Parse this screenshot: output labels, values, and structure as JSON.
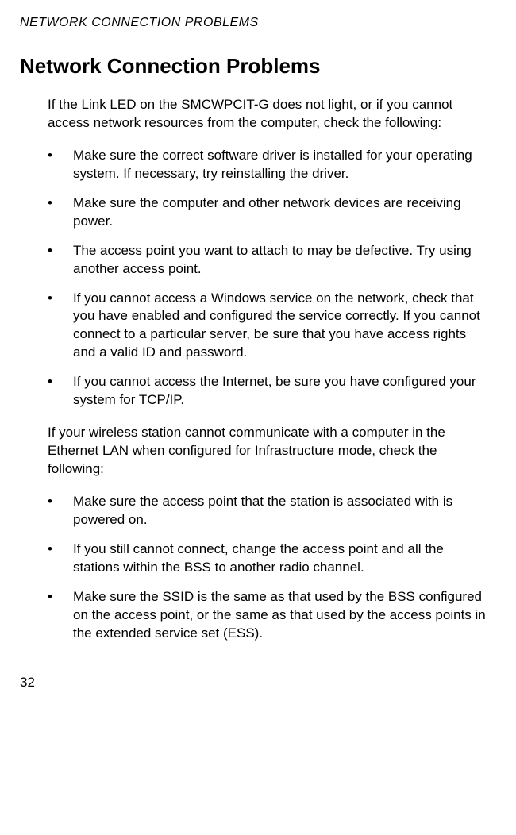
{
  "running_header": "NETWORK CONNECTION PROBLEMS",
  "heading": "Network Connection Problems",
  "intro1": "If the Link LED on the SMCWPCIT-G does not light, or if you cannot access network resources from the computer, check the following:",
  "list1": [
    "Make sure the correct software driver is installed for your operating system. If necessary, try reinstalling the driver.",
    "Make sure the computer and other network devices are receiving power.",
    "The access point you want to attach to may be defective. Try using another access point.",
    "If you cannot access a Windows service on the network, check that you have enabled and configured the service correctly. If you cannot connect to a particular server, be sure that you have access rights and a valid ID and password.",
    "If you cannot access the Internet, be sure you have configured your system for TCP/IP."
  ],
  "intro2": "If your wireless station cannot communicate with a computer in the Ethernet LAN when configured for Infrastructure mode, check the following:",
  "list2": [
    "Make sure the access point that the station is associated with is powered on.",
    "If you still cannot connect, change the access point and all the stations within the BSS to another radio channel.",
    "Make sure the SSID is the same as that used by the BSS configured on the access point, or the same as that used by the access points in the extended service set (ESS)."
  ],
  "page_number": "32"
}
